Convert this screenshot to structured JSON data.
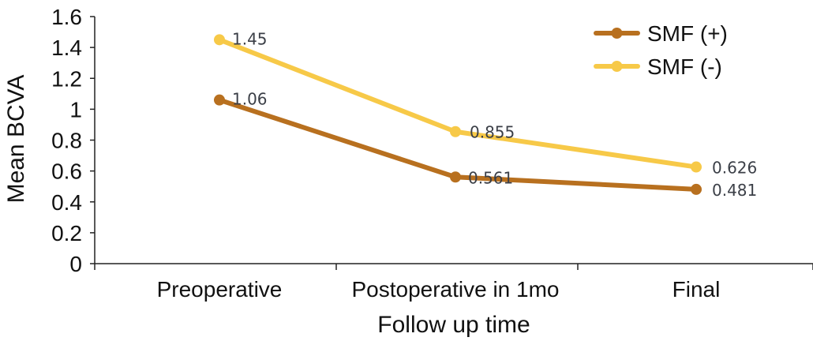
{
  "chart_data": {
    "type": "line",
    "title": "",
    "xlabel": "Follow up time",
    "ylabel": "Mean BCVA",
    "categories": [
      "Preoperative",
      "Postoperative in 1mo",
      "Final"
    ],
    "ylim": [
      0,
      1.6
    ],
    "yticks": [
      "0",
      "0.2",
      "0.4",
      "0.6",
      "0.8",
      "1",
      "1.2",
      "1.4",
      "1.6"
    ],
    "grid": false,
    "legend_position": "top-right",
    "series": [
      {
        "name": "SMF (+)",
        "values": [
          1.06,
          0.561,
          0.481
        ],
        "labels": [
          "1.06",
          "0.561",
          "0.481"
        ],
        "color": "#b8701f"
      },
      {
        "name": "SMF (-)",
        "values": [
          1.45,
          0.855,
          0.626
        ],
        "labels": [
          "1.45",
          "0.855",
          "0.626"
        ],
        "color": "#f7c948"
      }
    ]
  }
}
